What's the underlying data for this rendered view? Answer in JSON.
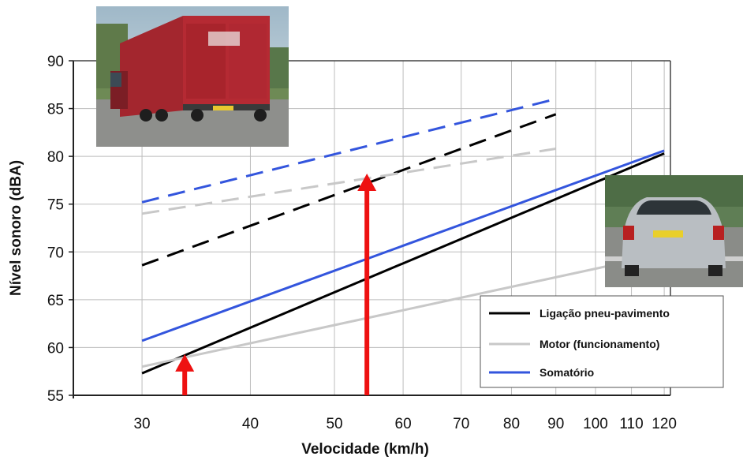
{
  "chart_data": {
    "type": "line",
    "xlabel": "Velocidade (km/h)",
    "ylabel": "Nível sonoro (dBA)",
    "x_scale": "log",
    "xlim": [
      25,
      122
    ],
    "ylim": [
      55,
      90
    ],
    "x_ticks": [
      30,
      40,
      50,
      60,
      70,
      80,
      90,
      100,
      110,
      120
    ],
    "x_tick_labels": [
      "30",
      "40",
      "50",
      "60",
      "70",
      "80",
      "90",
      "100",
      "110",
      "120"
    ],
    "y_ticks": [
      55,
      60,
      65,
      70,
      75,
      80,
      85,
      90
    ],
    "y_tick_labels": [
      "55",
      "60",
      "65",
      "70",
      "75",
      "80",
      "85",
      "90"
    ],
    "grid": true,
    "legend_position": "bottom-right",
    "series": [
      {
        "name": "Ligação pneu-pavimento",
        "color": "#000000",
        "style": "solid",
        "x": [
          30,
          120
        ],
        "y": [
          57.3,
          80.3
        ]
      },
      {
        "name": "Motor (funcionamento)",
        "color": "#c8c8c8",
        "style": "solid",
        "x": [
          30,
          120
        ],
        "y": [
          58.0,
          69.8
        ]
      },
      {
        "name": "Somatório",
        "color": "#3355dd",
        "style": "solid",
        "x": [
          30,
          120
        ],
        "y": [
          60.7,
          80.6
        ]
      },
      {
        "color": "#000000",
        "style": "dashed",
        "x": [
          30,
          90
        ],
        "y": [
          68.6,
          84.4
        ]
      },
      {
        "color": "#c8c8c8",
        "style": "dashed",
        "x": [
          30,
          90
        ],
        "y": [
          74.0,
          80.8
        ]
      },
      {
        "color": "#3355dd",
        "style": "dashed",
        "x": [
          30,
          90
        ],
        "y": [
          75.2,
          86.0
        ]
      }
    ],
    "arrows": [
      {
        "color": "#ee1111",
        "x": 33.6,
        "y_from": 55,
        "y_to": 59.3
      },
      {
        "color": "#ee1111",
        "x": 54.5,
        "y_from": 55,
        "y_to": 78.2
      }
    ],
    "images": [
      {
        "name": "truck-photo",
        "position": "top-left"
      },
      {
        "name": "car-photo",
        "position": "right"
      }
    ]
  }
}
